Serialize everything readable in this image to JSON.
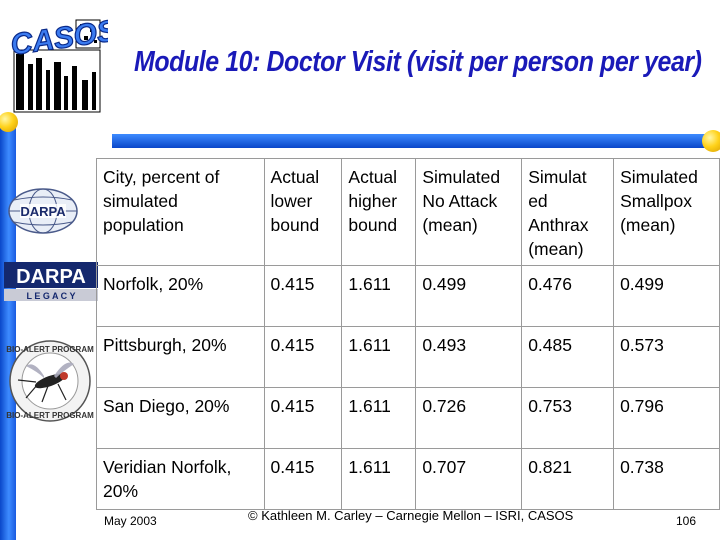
{
  "logos": {
    "casos": "CASOS",
    "darpa_globe": "DARPA",
    "darpa_legacy_top": "DARPA",
    "darpa_legacy_bottom": "L E G A C Y",
    "bioalert_top": "BIO-ALERT PROGRAM",
    "bioalert_bottom": "BIO-ALERT PROGRAM"
  },
  "slide": {
    "title": "Module 10: Doctor Visit (visit per person per year)"
  },
  "table": {
    "headers": [
      "City, percent of simulated population",
      "Actual lower bound",
      "Actual higher bound",
      "Simulated No Attack (mean)",
      "Simulat ed Anthrax (mean)",
      "Simulated Smallpox (mean)"
    ],
    "rows": [
      [
        "Norfolk, 20%",
        "0.415",
        "1.611",
        "0.499",
        "0.476",
        "0.499"
      ],
      [
        "Pittsburgh, 20%",
        "0.415",
        "1.611",
        "0.493",
        "0.485",
        "0.573"
      ],
      [
        "San Diego, 20%",
        "0.415",
        "1.611",
        "0.726",
        "0.753",
        "0.796"
      ],
      [
        "Veridian Norfolk, 20%",
        "0.415",
        "1.611",
        "0.707",
        "0.821",
        "0.738"
      ]
    ]
  },
  "footer": {
    "date": "May 2003",
    "copyright": "© Kathleen M. Carley – Carnegie Mellon – ISRI, CASOS",
    "page": "106"
  },
  "colors": {
    "title": "#1a1ab8",
    "bar_blue": "#0a47c9",
    "ball_yellow": "#ffd21a"
  }
}
